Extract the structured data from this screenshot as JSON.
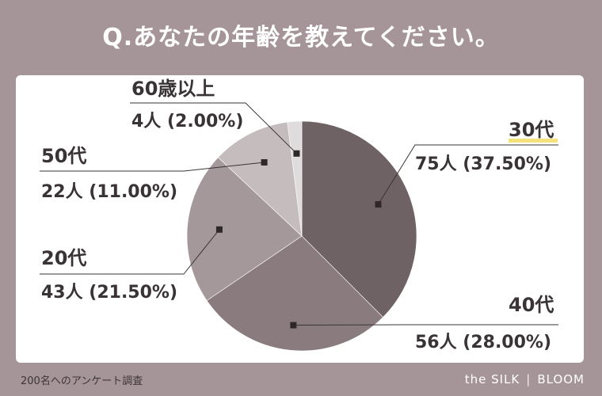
{
  "header": {
    "title": "Q.あなたの年齢を教えてください。"
  },
  "footer": {
    "note": "200名へのアンケート調査",
    "brand_left": "the SILK",
    "brand_sep": "|",
    "brand_right": "BLOOM"
  },
  "colors": {
    "background": "#a59598",
    "highlight": "#f5e27a"
  },
  "chart_data": {
    "type": "pie",
    "start": "12 o'clock, clockwise",
    "slices": [
      {
        "category": "30代",
        "count_label": "75人 (37.50%)",
        "value": 37.5,
        "color": "#6f6264"
      },
      {
        "category": "40代",
        "count_label": "56人 (28.00%)",
        "value": 28.0,
        "color": "#8a7c7e"
      },
      {
        "category": "20代",
        "count_label": "43人 (21.50%)",
        "value": 21.5,
        "color": "#a4989a"
      },
      {
        "category": "50代",
        "count_label": "22人 (11.00%)",
        "value": 11.0,
        "color": "#c5bcbe"
      },
      {
        "category": "60歳以上",
        "count_label": "4人 (2.00%)",
        "value": 2.0,
        "color": "#e0dbdc"
      }
    ]
  }
}
